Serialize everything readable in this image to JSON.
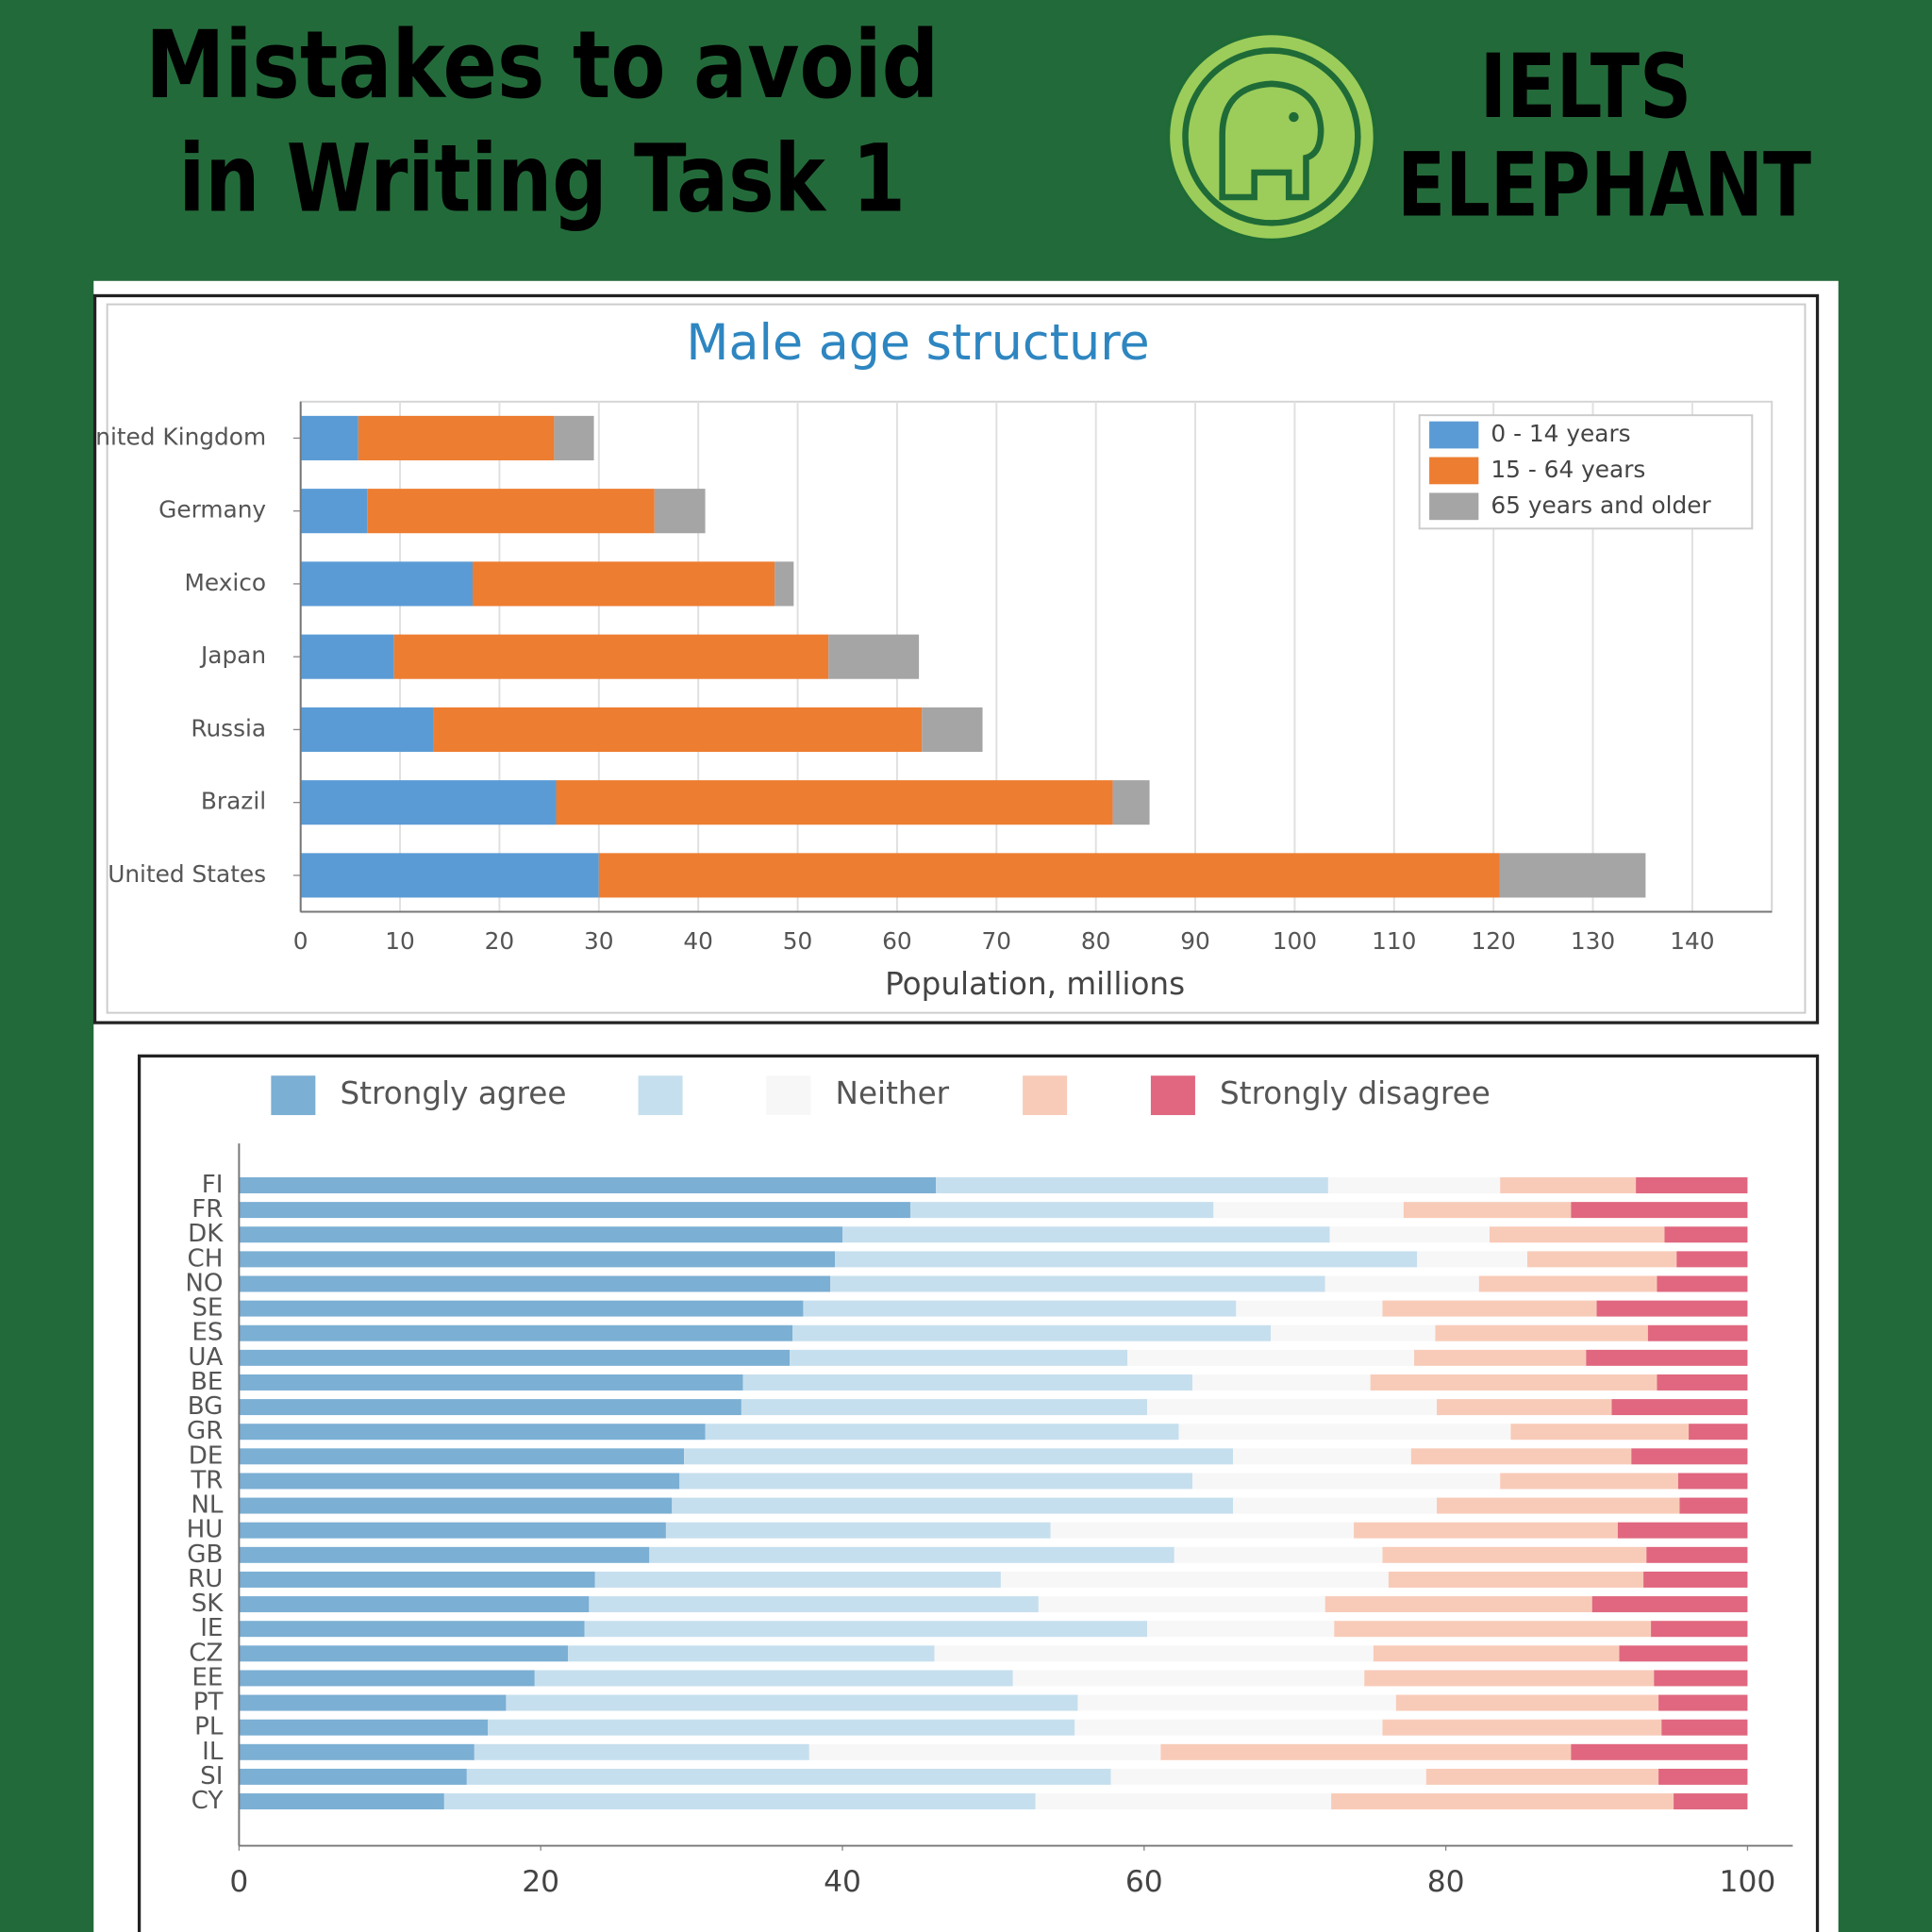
{
  "header": {
    "title": [
      "Mistakes to avoid",
      "in Writing Task 1"
    ],
    "brand": [
      "IELTS",
      "ELEPHANT"
    ]
  },
  "chart_data": [
    {
      "type": "bar",
      "orientation": "horizontal",
      "stacked": true,
      "title": "Male age structure",
      "x_label": "Population, millions",
      "categories": [
        "United Kingdom",
        "Germany",
        "Mexico",
        "Japan",
        "Russia",
        "Brazil",
        "United States"
      ],
      "series": [
        {
          "name": "0 - 14 years",
          "color": "#5b9bd5",
          "values": [
            5.8,
            6.7,
            17.3,
            9.4,
            13.4,
            25.7,
            30.0
          ]
        },
        {
          "name": "15 - 64 years",
          "color": "#ed7d31",
          "values": [
            19.7,
            28.9,
            30.4,
            43.7,
            49.1,
            56.0,
            90.6
          ]
        },
        {
          "name": "65 years and older",
          "color": "#a5a5a5",
          "values": [
            4.0,
            5.1,
            1.9,
            9.1,
            6.1,
            3.7,
            14.7
          ]
        }
      ],
      "xlim": [
        0,
        148
      ],
      "xticks": [
        0,
        10,
        20,
        30,
        40,
        50,
        60,
        70,
        80,
        90,
        100,
        110,
        120,
        130,
        140
      ],
      "grid": true,
      "legend": "upper right"
    },
    {
      "type": "bar",
      "orientation": "horizontal",
      "stacked": true,
      "categories": [
        "FI",
        "FR",
        "DK",
        "CH",
        "NO",
        "SE",
        "ES",
        "UA",
        "BE",
        "BG",
        "GR",
        "DE",
        "TR",
        "NL",
        "HU",
        "GB",
        "RU",
        "SK",
        "IE",
        "CZ",
        "EE",
        "PT",
        "PL",
        "IL",
        "SI",
        "CY"
      ],
      "series": [
        {
          "name": "Strongly agree",
          "color": "#7bafd4",
          "values": [
            46.2,
            44.5,
            40.0,
            39.5,
            39.2,
            37.4,
            36.7,
            36.5,
            33.4,
            33.3,
            30.9,
            29.5,
            29.2,
            28.7,
            28.3,
            27.2,
            23.6,
            23.2,
            22.9,
            21.8,
            19.6,
            17.7,
            16.5,
            15.6,
            15.1,
            13.6
          ]
        },
        {
          "name": null,
          "color": "#c6dfee",
          "values": [
            26.0,
            20.1,
            32.3,
            38.6,
            32.8,
            28.7,
            31.7,
            22.4,
            29.8,
            26.9,
            31.4,
            36.4,
            34.0,
            37.2,
            25.5,
            34.8,
            26.9,
            29.8,
            37.3,
            24.3,
            31.7,
            37.9,
            38.9,
            22.2,
            42.7,
            39.2
          ]
        },
        {
          "name": "Neither",
          "color": "#f7f7f7",
          "values": [
            11.4,
            12.6,
            10.6,
            7.3,
            10.2,
            9.7,
            10.9,
            19.0,
            11.8,
            19.2,
            22.0,
            11.8,
            20.4,
            13.5,
            20.1,
            13.8,
            25.7,
            19.0,
            12.4,
            29.1,
            23.3,
            21.1,
            20.4,
            23.3,
            20.9,
            19.6
          ]
        },
        {
          "name": null,
          "color": "#f8cbb8",
          "values": [
            9.0,
            11.1,
            11.6,
            9.9,
            11.8,
            14.2,
            14.1,
            11.4,
            19.0,
            11.6,
            11.8,
            14.6,
            11.8,
            16.1,
            17.5,
            17.5,
            16.9,
            17.7,
            21.0,
            16.3,
            19.2,
            17.4,
            18.5,
            27.2,
            15.4,
            22.7
          ]
        },
        {
          "name": "Strongly disagree",
          "color": "#e0677f",
          "values": [
            7.4,
            11.7,
            5.5,
            4.7,
            6.0,
            10.0,
            6.6,
            10.7,
            6.0,
            9.0,
            3.9,
            7.7,
            4.6,
            4.5,
            8.6,
            6.7,
            6.9,
            10.3,
            6.4,
            8.5,
            6.2,
            5.9,
            5.7,
            11.7,
            5.9,
            4.9
          ]
        }
      ],
      "xlim": [
        0,
        103
      ],
      "xticks": [
        0,
        20,
        40,
        60,
        80,
        100
      ],
      "grid": false,
      "legend": "top"
    }
  ]
}
